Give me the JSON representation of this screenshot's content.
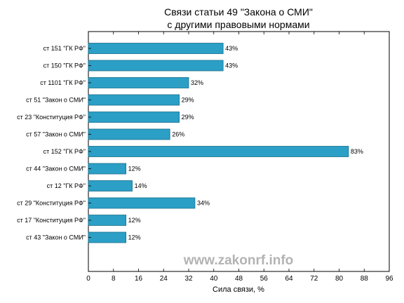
{
  "chart_data": {
    "type": "bar",
    "orientation": "horizontal",
    "title": [
      "Связи статьи 49 \"Закона о СМИ\"",
      "с другими правовыми нормами"
    ],
    "xlabel": "Сила связи, %",
    "ylabel": "",
    "xlim": [
      0,
      96
    ],
    "xticks": [
      0,
      8,
      16,
      24,
      32,
      40,
      48,
      56,
      64,
      72,
      80,
      88,
      96
    ],
    "grid": false,
    "categories": [
      "ст 151 \"ГК РФ\"",
      "ст 150 \"ГК РФ\"",
      "ст 1101 \"ГК РФ\"",
      "ст 51 \"Закон о СМИ\"",
      "ст 23 \"Конституция РФ\"",
      "ст 57 \"Закон о СМИ\"",
      "ст 152 \"ГК РФ\"",
      "ст 44 \"Закон о СМИ\"",
      "ст 12 \"ГК РФ\"",
      "ст 29 \"Конституция РФ\"",
      "ст 17 \"Конституция РФ\"",
      "ст 43 \"Закон о СМИ\""
    ],
    "values": [
      43,
      43,
      32,
      29,
      29,
      26,
      83,
      12,
      14,
      34,
      12,
      12
    ],
    "data_labels": [
      "43%",
      "43%",
      "32%",
      "29%",
      "29%",
      "26%",
      "83%",
      "12%",
      "14%",
      "34%",
      "12%",
      "12%"
    ],
    "bar_color": "#2b9fc6",
    "bar_edge_color": "#1a6f8a"
  },
  "watermark": "www.zakonrf.info"
}
